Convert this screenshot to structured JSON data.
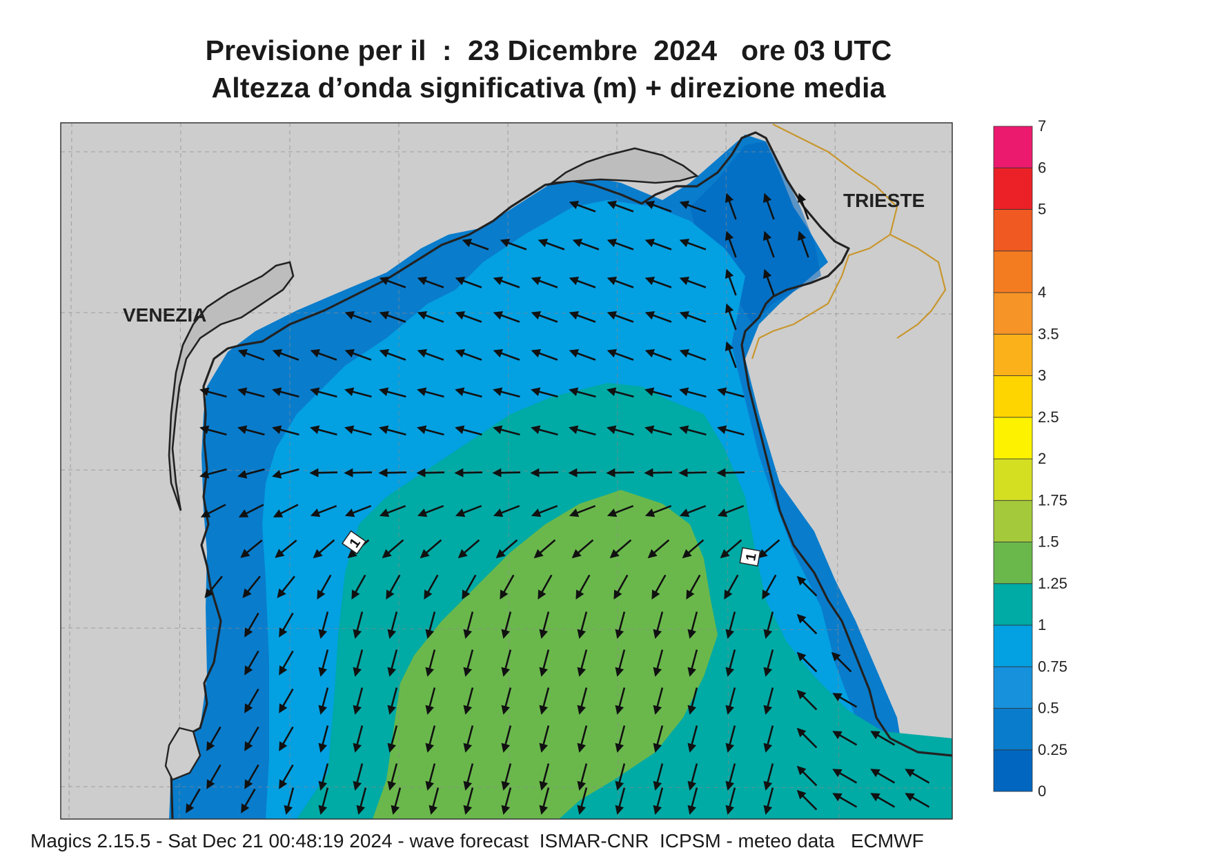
{
  "header": {
    "title_line1": "Previsione per il  :  23 Dicembre  2024   ore 03 UTC",
    "title_line2": "Altezza d’onda significativa (m) + direzione media"
  },
  "map": {
    "cities": [
      {
        "name": "VENEZIA"
      },
      {
        "name": "TRIESTE"
      }
    ],
    "contour_label": "1",
    "colors": {
      "land": "#cdcdcd",
      "border": "#c8962d",
      "coast": "#222222"
    }
  },
  "legend": {
    "levels": [
      "0",
      "0.25",
      "0.5",
      "0.75",
      "1",
      "1.25",
      "1.5",
      "1.75",
      "2",
      "2.5",
      "3",
      "3.5",
      "4",
      "4.5",
      "5",
      "6",
      "7"
    ],
    "shown_labels": [
      "0",
      "0.25",
      "0.5",
      "0.75",
      "1",
      "1.25",
      "1.5",
      "1.75",
      "2",
      "2.5",
      "3",
      "3.5",
      "4",
      "5",
      "6",
      "7"
    ],
    "colors": [
      "#0066c0",
      "#0a7ccc",
      "#1791dc",
      "#03a0e2",
      "#00aaa5",
      "#6ab84c",
      "#a4c93a",
      "#d4df22",
      "#fdf200",
      "#ffd500",
      "#fbb11a",
      "#f79428",
      "#f47c20",
      "#f05a22",
      "#ec2027",
      "#ec1a6e"
    ]
  },
  "footer": {
    "text": "Magics 2.15.5 - Sat Dec 21 00:48:19 2024 - wave forecast  ISMAR-CNR  ICPSM - meteo data   ECMWF"
  }
}
